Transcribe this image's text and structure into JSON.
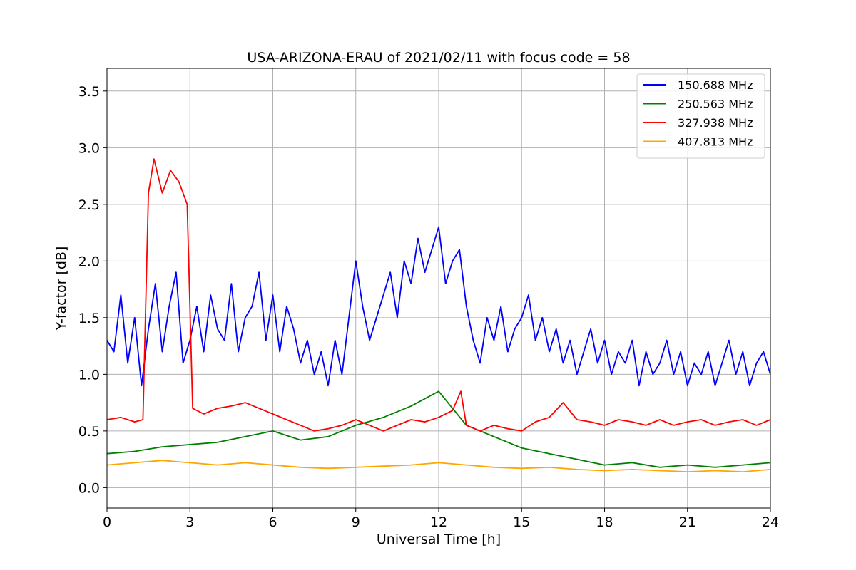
{
  "chart_data": {
    "type": "line",
    "title": "USA-ARIZONA-ERAU of 2021/02/11 with focus code = 58",
    "xlabel": "Universal Time [h]",
    "ylabel": "Y-factor [dB]",
    "xlim": [
      0,
      24
    ],
    "ylim": [
      -0.18,
      3.7
    ],
    "xticks": [
      0,
      3,
      6,
      9,
      12,
      15,
      18,
      21,
      24
    ],
    "xtick_labels": [
      "0",
      "3",
      "6",
      "9",
      "12",
      "15",
      "18",
      "21",
      "24"
    ],
    "yticks": [
      0.0,
      0.5,
      1.0,
      1.5,
      2.0,
      2.5,
      3.0,
      3.5
    ],
    "ytick_labels": [
      "0.0",
      "0.5",
      "1.0",
      "1.5",
      "2.0",
      "2.5",
      "3.0",
      "3.5"
    ],
    "grid": true,
    "legend_position": "top-right",
    "series": [
      {
        "name": "150.688 MHz",
        "color": "#0000ff",
        "x": [
          0,
          0.25,
          0.5,
          0.75,
          1,
          1.25,
          1.5,
          1.75,
          2,
          2.25,
          2.5,
          2.75,
          3,
          3.25,
          3.5,
          3.75,
          4,
          4.25,
          4.5,
          4.75,
          5,
          5.25,
          5.5,
          5.75,
          6,
          6.25,
          6.5,
          6.75,
          7,
          7.25,
          7.5,
          7.75,
          8,
          8.25,
          8.5,
          8.75,
          9,
          9.25,
          9.5,
          9.75,
          10,
          10.25,
          10.5,
          10.75,
          11,
          11.25,
          11.5,
          11.75,
          12,
          12.25,
          12.5,
          12.75,
          13,
          13.25,
          13.5,
          13.75,
          14,
          14.25,
          14.5,
          14.75,
          15,
          15.25,
          15.5,
          15.75,
          16,
          16.25,
          16.5,
          16.75,
          17,
          17.25,
          17.5,
          17.75,
          18,
          18.25,
          18.5,
          18.75,
          19,
          19.25,
          19.5,
          19.75,
          20,
          20.25,
          20.5,
          20.75,
          21,
          21.25,
          21.5,
          21.75,
          22,
          22.25,
          22.5,
          22.75,
          23,
          23.25,
          23.5,
          23.75,
          24
        ],
        "y": [
          1.3,
          1.2,
          1.7,
          1.1,
          1.5,
          0.9,
          1.4,
          1.8,
          1.2,
          1.6,
          1.9,
          1.1,
          1.3,
          1.6,
          1.2,
          1.7,
          1.4,
          1.3,
          1.8,
          1.2,
          1.5,
          1.6,
          1.9,
          1.3,
          1.7,
          1.2,
          1.6,
          1.4,
          1.1,
          1.3,
          1.0,
          1.2,
          0.9,
          1.3,
          1.0,
          1.5,
          2.0,
          1.6,
          1.3,
          1.5,
          1.7,
          1.9,
          1.5,
          2.0,
          1.8,
          2.2,
          1.9,
          2.1,
          2.3,
          1.8,
          2.0,
          2.1,
          1.6,
          1.3,
          1.1,
          1.5,
          1.3,
          1.6,
          1.2,
          1.4,
          1.5,
          1.7,
          1.3,
          1.5,
          1.2,
          1.4,
          1.1,
          1.3,
          1.0,
          1.2,
          1.4,
          1.1,
          1.3,
          1.0,
          1.2,
          1.1,
          1.3,
          0.9,
          1.2,
          1.0,
          1.1,
          1.3,
          1.0,
          1.2,
          0.9,
          1.1,
          1.0,
          1.2,
          0.9,
          1.1,
          1.3,
          1.0,
          1.2,
          0.9,
          1.1,
          1.2,
          1.0
        ]
      },
      {
        "name": "250.563 MHz",
        "color": "#008000",
        "x": [
          0,
          1,
          2,
          3,
          4,
          5,
          6,
          7,
          8,
          9,
          10,
          11,
          12,
          13,
          14,
          15,
          16,
          17,
          18,
          19,
          20,
          21,
          22,
          23,
          24
        ],
        "y": [
          0.3,
          0.32,
          0.36,
          0.38,
          0.4,
          0.45,
          0.5,
          0.42,
          0.45,
          0.55,
          0.62,
          0.72,
          0.85,
          0.55,
          0.45,
          0.35,
          0.3,
          0.25,
          0.2,
          0.22,
          0.18,
          0.2,
          0.18,
          0.2,
          0.22
        ]
      },
      {
        "name": "327.938 MHz",
        "color": "#ff0000",
        "x": [
          0,
          0.5,
          1,
          1.3,
          1.5,
          1.7,
          2,
          2.3,
          2.6,
          2.9,
          3.1,
          3.5,
          4,
          4.5,
          5,
          5.5,
          6,
          6.5,
          7,
          7.5,
          8,
          8.5,
          9,
          9.5,
          10,
          10.5,
          11,
          11.5,
          12,
          12.5,
          12.8,
          13,
          13.5,
          14,
          14.5,
          15,
          15.5,
          16,
          16.5,
          17,
          17.5,
          18,
          18.5,
          19,
          19.5,
          20,
          20.5,
          21,
          21.5,
          22,
          22.5,
          23,
          23.5,
          24
        ],
        "y": [
          0.6,
          0.62,
          0.58,
          0.6,
          2.6,
          2.9,
          2.6,
          2.8,
          2.7,
          2.5,
          0.7,
          0.65,
          0.7,
          0.72,
          0.75,
          0.7,
          0.65,
          0.6,
          0.55,
          0.5,
          0.52,
          0.55,
          0.6,
          0.55,
          0.5,
          0.55,
          0.6,
          0.58,
          0.62,
          0.68,
          0.85,
          0.55,
          0.5,
          0.55,
          0.52,
          0.5,
          0.58,
          0.62,
          0.75,
          0.6,
          0.58,
          0.55,
          0.6,
          0.58,
          0.55,
          0.6,
          0.55,
          0.58,
          0.6,
          0.55,
          0.58,
          0.6,
          0.55,
          0.6
        ]
      },
      {
        "name": "407.813 MHz",
        "color": "#ffa500",
        "x": [
          0,
          1,
          2,
          3,
          4,
          5,
          6,
          7,
          8,
          9,
          10,
          11,
          12,
          13,
          14,
          15,
          16,
          17,
          18,
          19,
          20,
          21,
          22,
          23,
          24
        ],
        "y": [
          0.2,
          0.22,
          0.24,
          0.22,
          0.2,
          0.22,
          0.2,
          0.18,
          0.17,
          0.18,
          0.19,
          0.2,
          0.22,
          0.2,
          0.18,
          0.17,
          0.18,
          0.16,
          0.15,
          0.16,
          0.15,
          0.14,
          0.15,
          0.14,
          0.16
        ]
      }
    ]
  }
}
